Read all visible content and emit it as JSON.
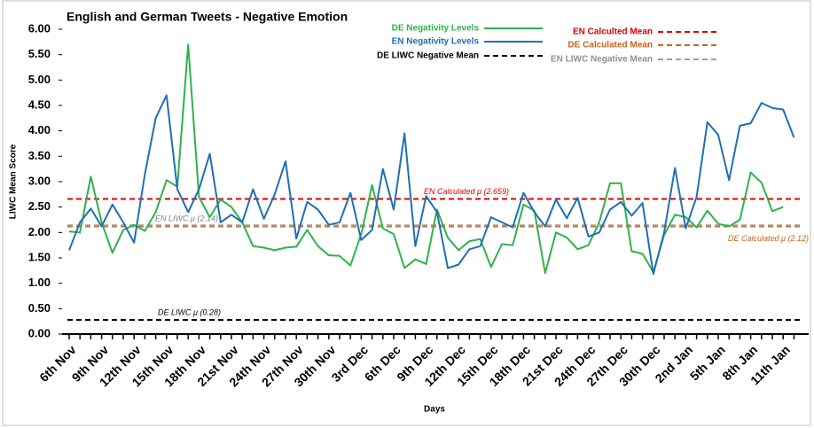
{
  "chart_data": {
    "type": "line",
    "title": "English and German Tweets - Negative Emotion",
    "x_label": "Days",
    "y_label": "LIWC Mean Score",
    "categories": [
      "6th Nov",
      null,
      null,
      "9th Nov",
      null,
      null,
      "12th Nov",
      null,
      null,
      "15th Nov",
      null,
      null,
      "18th Nov",
      null,
      null,
      "21st Nov",
      null,
      null,
      "24th Nov",
      null,
      null,
      "27th Nov",
      null,
      null,
      "30th Nov",
      null,
      null,
      "3rd Dec",
      null,
      null,
      "6th Dec",
      null,
      null,
      "9th Dec",
      null,
      null,
      "12th Dec",
      null,
      null,
      "15th Dec",
      null,
      null,
      "18th Dec",
      null,
      null,
      "21st Dec",
      null,
      null,
      "24th Dec",
      null,
      null,
      "27th Dec",
      null,
      null,
      "30th Dec",
      null,
      null,
      "2nd Jan",
      null,
      null,
      "5th Jan",
      null,
      null,
      "8th Jan",
      null,
      null,
      "11th Jan",
      null
    ],
    "series": [
      {
        "name": "DE Negativity Levels",
        "color": "#2db34a",
        "values": [
          2.02,
          2.0,
          3.1,
          2.2,
          1.6,
          2.05,
          2.15,
          2.03,
          2.4,
          3.03,
          2.9,
          5.7,
          2.7,
          2.3,
          2.65,
          2.5,
          2.2,
          1.73,
          1.7,
          1.65,
          1.7,
          1.72,
          2.05,
          1.73,
          1.55,
          1.54,
          1.35,
          1.97,
          2.93,
          2.08,
          1.97,
          1.3,
          1.47,
          1.38,
          2.45,
          1.9,
          1.65,
          1.83,
          1.87,
          1.32,
          1.77,
          1.75,
          2.55,
          2.43,
          1.2,
          2.0,
          1.9,
          1.67,
          1.75,
          2.2,
          2.97,
          2.97,
          1.63,
          1.58,
          1.22,
          1.95,
          2.35,
          2.3,
          2.1,
          2.43,
          2.17,
          2.12,
          2.25,
          3.18,
          2.98,
          2.42,
          2.5,
          null
        ]
      },
      {
        "name": "EN Negativity Levels",
        "color": "#1f6fb5",
        "values": [
          1.65,
          2.2,
          2.47,
          2.12,
          2.55,
          2.2,
          1.8,
          3.15,
          4.25,
          4.7,
          2.85,
          2.4,
          2.85,
          3.55,
          2.2,
          2.35,
          2.2,
          2.85,
          2.27,
          2.75,
          3.4,
          1.88,
          2.6,
          2.45,
          2.15,
          2.2,
          2.78,
          1.85,
          2.05,
          3.25,
          2.45,
          3.95,
          1.73,
          2.72,
          2.4,
          1.3,
          1.37,
          1.67,
          1.73,
          2.3,
          2.2,
          2.1,
          2.78,
          2.4,
          2.12,
          2.65,
          2.28,
          2.68,
          1.92,
          2.0,
          2.45,
          2.6,
          2.33,
          2.58,
          1.18,
          2.0,
          3.27,
          2.08,
          2.7,
          4.17,
          3.92,
          3.03,
          4.1,
          4.15,
          4.55,
          4.45,
          4.42,
          3.87
        ]
      }
    ],
    "reference_lines": [
      {
        "name": "DE LIWC Negative Mean",
        "color": "#000000",
        "value": 0.28,
        "label": "DE LIWC μ (0.28)"
      },
      {
        "name": "EN Calculted Mean",
        "color": "#e00000",
        "value": 2.659,
        "label": "EN Calculated μ (2.659)"
      },
      {
        "name": "DE Calculated Mean",
        "color": "#c8641e",
        "value": 2.12,
        "label": "DE Calculated μ (2.12)"
      },
      {
        "name": "EN LIWC Negative Mean",
        "color": "#a0a0a0",
        "value": 2.14,
        "label": "EN LIWC μ (2.14)"
      }
    ],
    "ylim": [
      0,
      6
    ],
    "yticks": [
      {
        "value": 0,
        "label": "0.00"
      },
      {
        "value": 0.5,
        "label": "0.50"
      },
      {
        "value": 1,
        "label": "1.00"
      },
      {
        "value": 1.5,
        "label": "1.50"
      },
      {
        "value": 2,
        "label": "2.00"
      },
      {
        "value": 2.5,
        "label": "2.50"
      },
      {
        "value": 3,
        "label": "3.00"
      },
      {
        "value": 3.5,
        "label": "3.50"
      },
      {
        "value": 4,
        "label": "4.00"
      },
      {
        "value": 4.5,
        "label": "4.50"
      },
      {
        "value": 5,
        "label": "5.00"
      },
      {
        "value": 5.5,
        "label": "5.50"
      },
      {
        "value": 6,
        "label": "6.00"
      }
    ],
    "grid": false
  }
}
